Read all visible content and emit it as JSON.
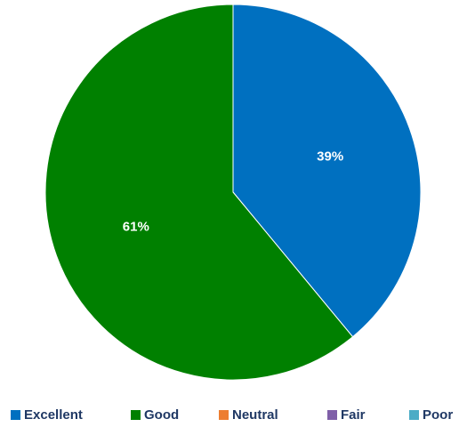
{
  "chart_data": {
    "type": "pie",
    "start_angle_deg": 0,
    "direction": "clockwise",
    "categories": [
      "Excellent",
      "Good",
      "Neutral",
      "Fair",
      "Poor"
    ],
    "values": [
      39,
      61,
      0,
      0,
      0
    ],
    "data_labels": [
      "39%",
      "61%",
      "",
      "",
      ""
    ],
    "colors": [
      "#0070c0",
      "#008000",
      "#ed7d31",
      "#7f5fa8",
      "#4bacc6"
    ],
    "legend_position": "bottom"
  }
}
